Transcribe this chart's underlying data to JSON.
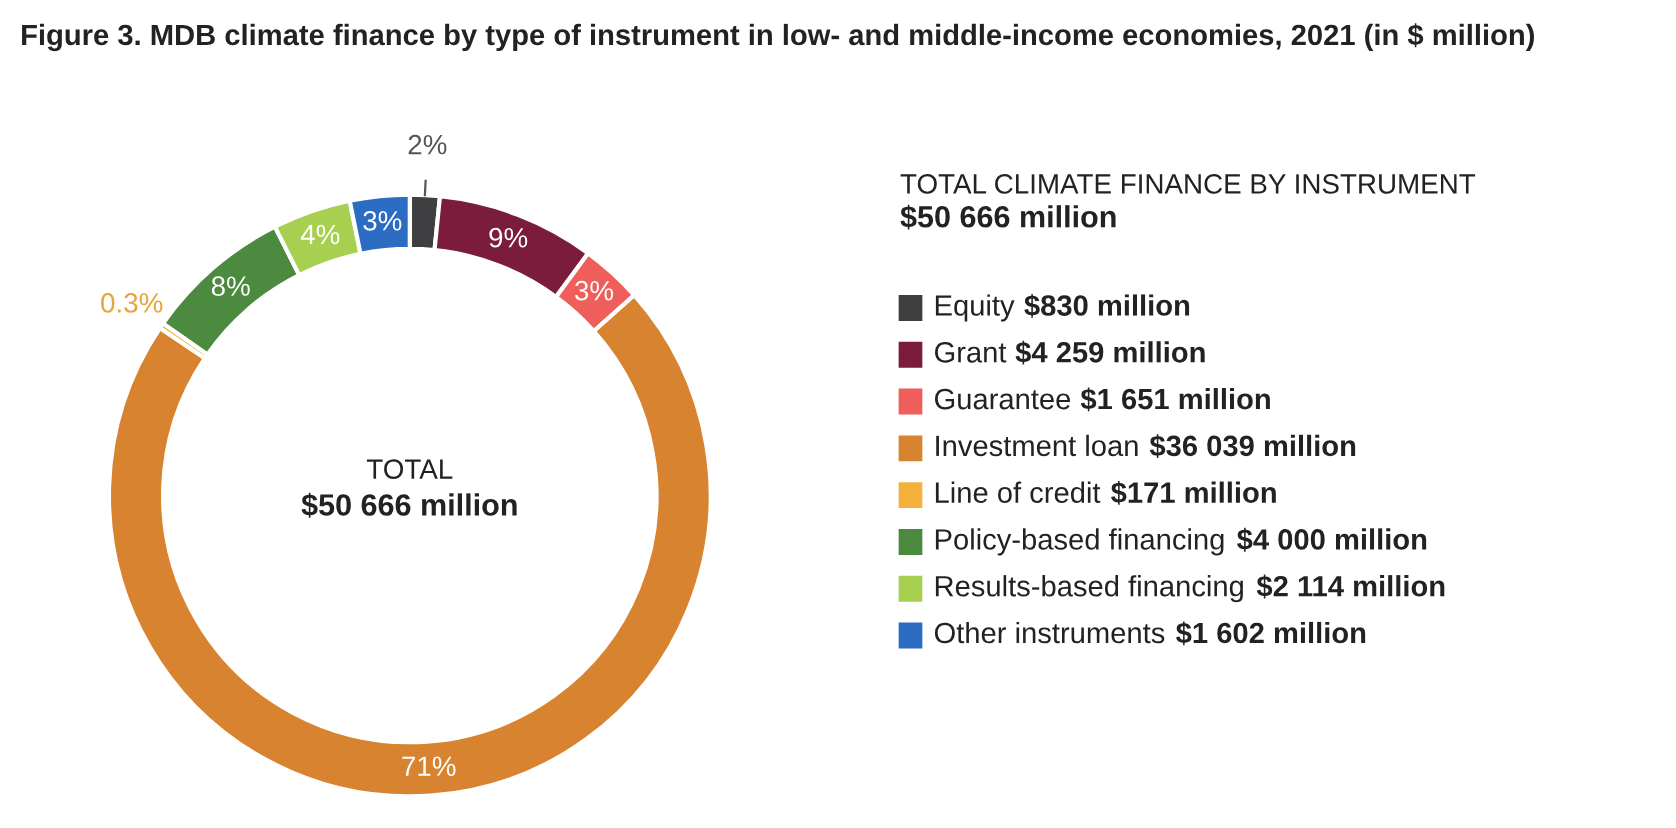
{
  "chart_data": {
    "type": "donut",
    "title": "Figure 3. MDB climate finance by type of instrument in low- and middle-income economies, 2021 (in $ million)",
    "legend_title": "TOTAL CLIMATE FINANCE BY INSTRUMENT",
    "categories": [
      "Equity",
      "Grant",
      "Guarantee",
      "Investment loan",
      "Line of credit",
      "Policy-based financing",
      "Results-based financing",
      "Other instruments"
    ],
    "values": [
      1.6,
      8.5,
      3.3,
      71.0,
      0.3,
      7.9,
      4.2,
      3.2
    ],
    "value_labels": [
      "2%",
      "9%",
      "3%",
      "71%",
      "0.3%",
      "8%",
      "4%",
      "3%"
    ],
    "colors": [
      "#3f3f41",
      "#7b1c3c",
      "#ee5f5b",
      "#d8832f",
      "#f4b23d",
      "#4b8a3f",
      "#a7cf50",
      "#2c6cc3"
    ],
    "legend": "right",
    "annotations": [
      "TOTAL",
      "$50 666 million",
      "$50 666 million",
      "$830 million",
      "$4 259 million",
      "$1 651 million",
      "$36 039 million",
      "$171 million",
      "$4 000 million",
      "$2 114 million",
      "$1 602 million"
    ]
  }
}
